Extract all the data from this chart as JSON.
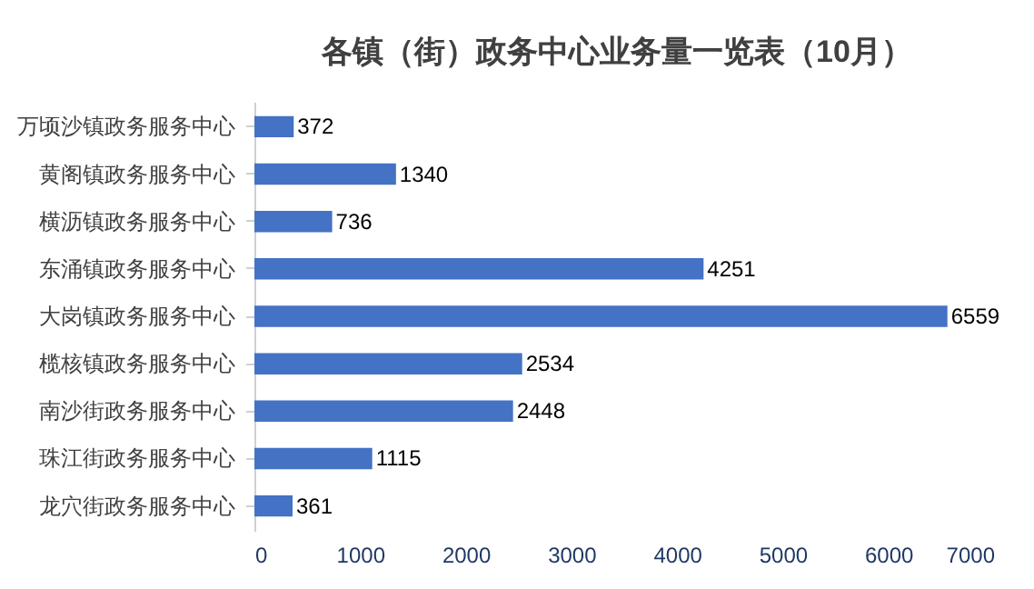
{
  "chart_data": {
    "type": "bar",
    "orientation": "horizontal",
    "title": "各镇（街）政务中心业务量一览表（10月）",
    "categories": [
      "万顷沙镇政务服务中心",
      "黄阁镇政务服务中心",
      "横沥镇政务服务中心",
      "东涌镇政务服务中心",
      "大岗镇政务服务中心",
      "榄核镇政务服务中心",
      "南沙街政务服务中心",
      "珠江街政务服务中心",
      "龙穴街政务服务中心"
    ],
    "values": [
      372,
      1340,
      736,
      4251,
      6559,
      2534,
      2448,
      1115,
      361
    ],
    "color": "#4472c4",
    "xlim": [
      0,
      7000
    ],
    "xticks": [
      0,
      1000,
      2000,
      3000,
      4000,
      5000,
      6000,
      7000
    ],
    "grid": false,
    "data_labels": true
  }
}
